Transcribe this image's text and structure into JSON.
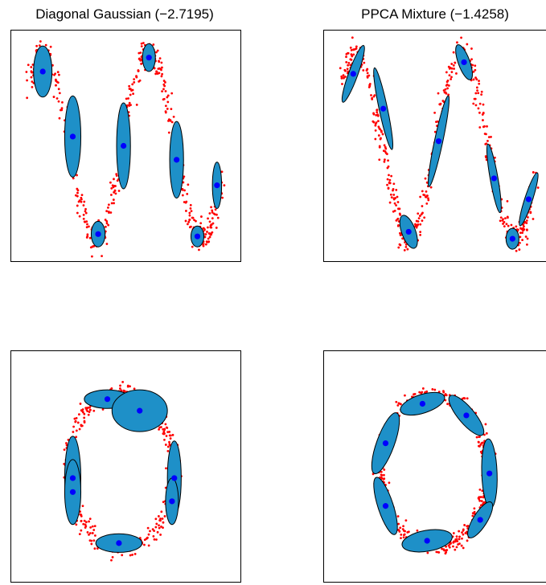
{
  "titles": {
    "left": "Diagonal Gaussian (−2.7195)",
    "right": "PPCA Mixture (−1.4258)"
  },
  "colors": {
    "points": "#ff0000",
    "ellipse_fill": "#1e90c8",
    "ellipse_stroke": "#000000",
    "centers": "#0000ff"
  },
  "chart_data": [
    {
      "type": "scatter",
      "panel": "top-left",
      "title": "Diagonal Gaussian (−2.7195)",
      "xlim": [
        0,
        1
      ],
      "ylim": [
        0,
        1
      ],
      "grid": false,
      "components": [
        {
          "cx": 0.14,
          "cy": 0.82,
          "rx": 0.04,
          "ry": 0.11,
          "angle": 0
        },
        {
          "cx": 0.27,
          "cy": 0.54,
          "rx": 0.035,
          "ry": 0.175,
          "angle": 0
        },
        {
          "cx": 0.38,
          "cy": 0.12,
          "rx": 0.03,
          "ry": 0.055,
          "angle": 0
        },
        {
          "cx": 0.49,
          "cy": 0.5,
          "rx": 0.03,
          "ry": 0.185,
          "angle": 0
        },
        {
          "cx": 0.6,
          "cy": 0.88,
          "rx": 0.028,
          "ry": 0.06,
          "angle": 0
        },
        {
          "cx": 0.72,
          "cy": 0.44,
          "rx": 0.03,
          "ry": 0.165,
          "angle": 0
        },
        {
          "cx": 0.81,
          "cy": 0.11,
          "rx": 0.028,
          "ry": 0.045,
          "angle": 0
        },
        {
          "cx": 0.895,
          "cy": 0.33,
          "rx": 0.02,
          "ry": 0.1,
          "angle": 0
        }
      ],
      "curve": "sinusoid"
    },
    {
      "type": "scatter",
      "panel": "top-right",
      "title": "PPCA Mixture (−1.4258)",
      "xlim": [
        0,
        1
      ],
      "ylim": [
        0,
        1
      ],
      "grid": false,
      "components": [
        {
          "cx": 0.13,
          "cy": 0.81,
          "rx": 0.02,
          "ry": 0.13,
          "angle": 20
        },
        {
          "cx": 0.26,
          "cy": 0.66,
          "rx": 0.018,
          "ry": 0.18,
          "angle": -12
        },
        {
          "cx": 0.37,
          "cy": 0.13,
          "rx": 0.03,
          "ry": 0.075,
          "angle": -20
        },
        {
          "cx": 0.5,
          "cy": 0.52,
          "rx": 0.018,
          "ry": 0.2,
          "angle": 12
        },
        {
          "cx": 0.61,
          "cy": 0.86,
          "rx": 0.025,
          "ry": 0.08,
          "angle": -20
        },
        {
          "cx": 0.74,
          "cy": 0.36,
          "rx": 0.017,
          "ry": 0.15,
          "angle": -10
        },
        {
          "cx": 0.82,
          "cy": 0.1,
          "rx": 0.028,
          "ry": 0.045,
          "angle": 0
        },
        {
          "cx": 0.89,
          "cy": 0.27,
          "rx": 0.017,
          "ry": 0.12,
          "angle": 18
        }
      ],
      "curve": "sinusoid"
    },
    {
      "type": "scatter",
      "panel": "bottom-left",
      "title": "",
      "xlim": [
        0,
        1
      ],
      "ylim": [
        0,
        1
      ],
      "grid": false,
      "components": [
        {
          "cx": 0.42,
          "cy": 0.79,
          "rx": 0.1,
          "ry": 0.04,
          "angle": 0
        },
        {
          "cx": 0.56,
          "cy": 0.74,
          "rx": 0.12,
          "ry": 0.09,
          "angle": 0
        },
        {
          "cx": 0.27,
          "cy": 0.45,
          "rx": 0.035,
          "ry": 0.18,
          "angle": 0
        },
        {
          "cx": 0.27,
          "cy": 0.39,
          "rx": 0.035,
          "ry": 0.14,
          "angle": 0
        },
        {
          "cx": 0.71,
          "cy": 0.45,
          "rx": 0.03,
          "ry": 0.16,
          "angle": 0
        },
        {
          "cx": 0.7,
          "cy": 0.35,
          "rx": 0.028,
          "ry": 0.1,
          "angle": 0
        },
        {
          "cx": 0.47,
          "cy": 0.17,
          "rx": 0.1,
          "ry": 0.04,
          "angle": 0
        }
      ],
      "curve": "ring"
    },
    {
      "type": "scatter",
      "panel": "bottom-right",
      "title": "",
      "xlim": [
        0,
        1
      ],
      "ylim": [
        0,
        1
      ],
      "grid": false,
      "components": [
        {
          "cx": 0.43,
          "cy": 0.77,
          "rx": 0.1,
          "ry": 0.04,
          "angle": -18
        },
        {
          "cx": 0.62,
          "cy": 0.72,
          "rx": 0.11,
          "ry": 0.035,
          "angle": 50
        },
        {
          "cx": 0.27,
          "cy": 0.6,
          "rx": 0.14,
          "ry": 0.038,
          "angle": -70
        },
        {
          "cx": 0.72,
          "cy": 0.47,
          "rx": 0.15,
          "ry": 0.033,
          "angle": 88
        },
        {
          "cx": 0.27,
          "cy": 0.33,
          "rx": 0.13,
          "ry": 0.033,
          "angle": 72
        },
        {
          "cx": 0.68,
          "cy": 0.27,
          "rx": 0.09,
          "ry": 0.03,
          "angle": -58
        },
        {
          "cx": 0.45,
          "cy": 0.18,
          "rx": 0.11,
          "ry": 0.045,
          "angle": -10
        }
      ],
      "curve": "ring"
    }
  ]
}
